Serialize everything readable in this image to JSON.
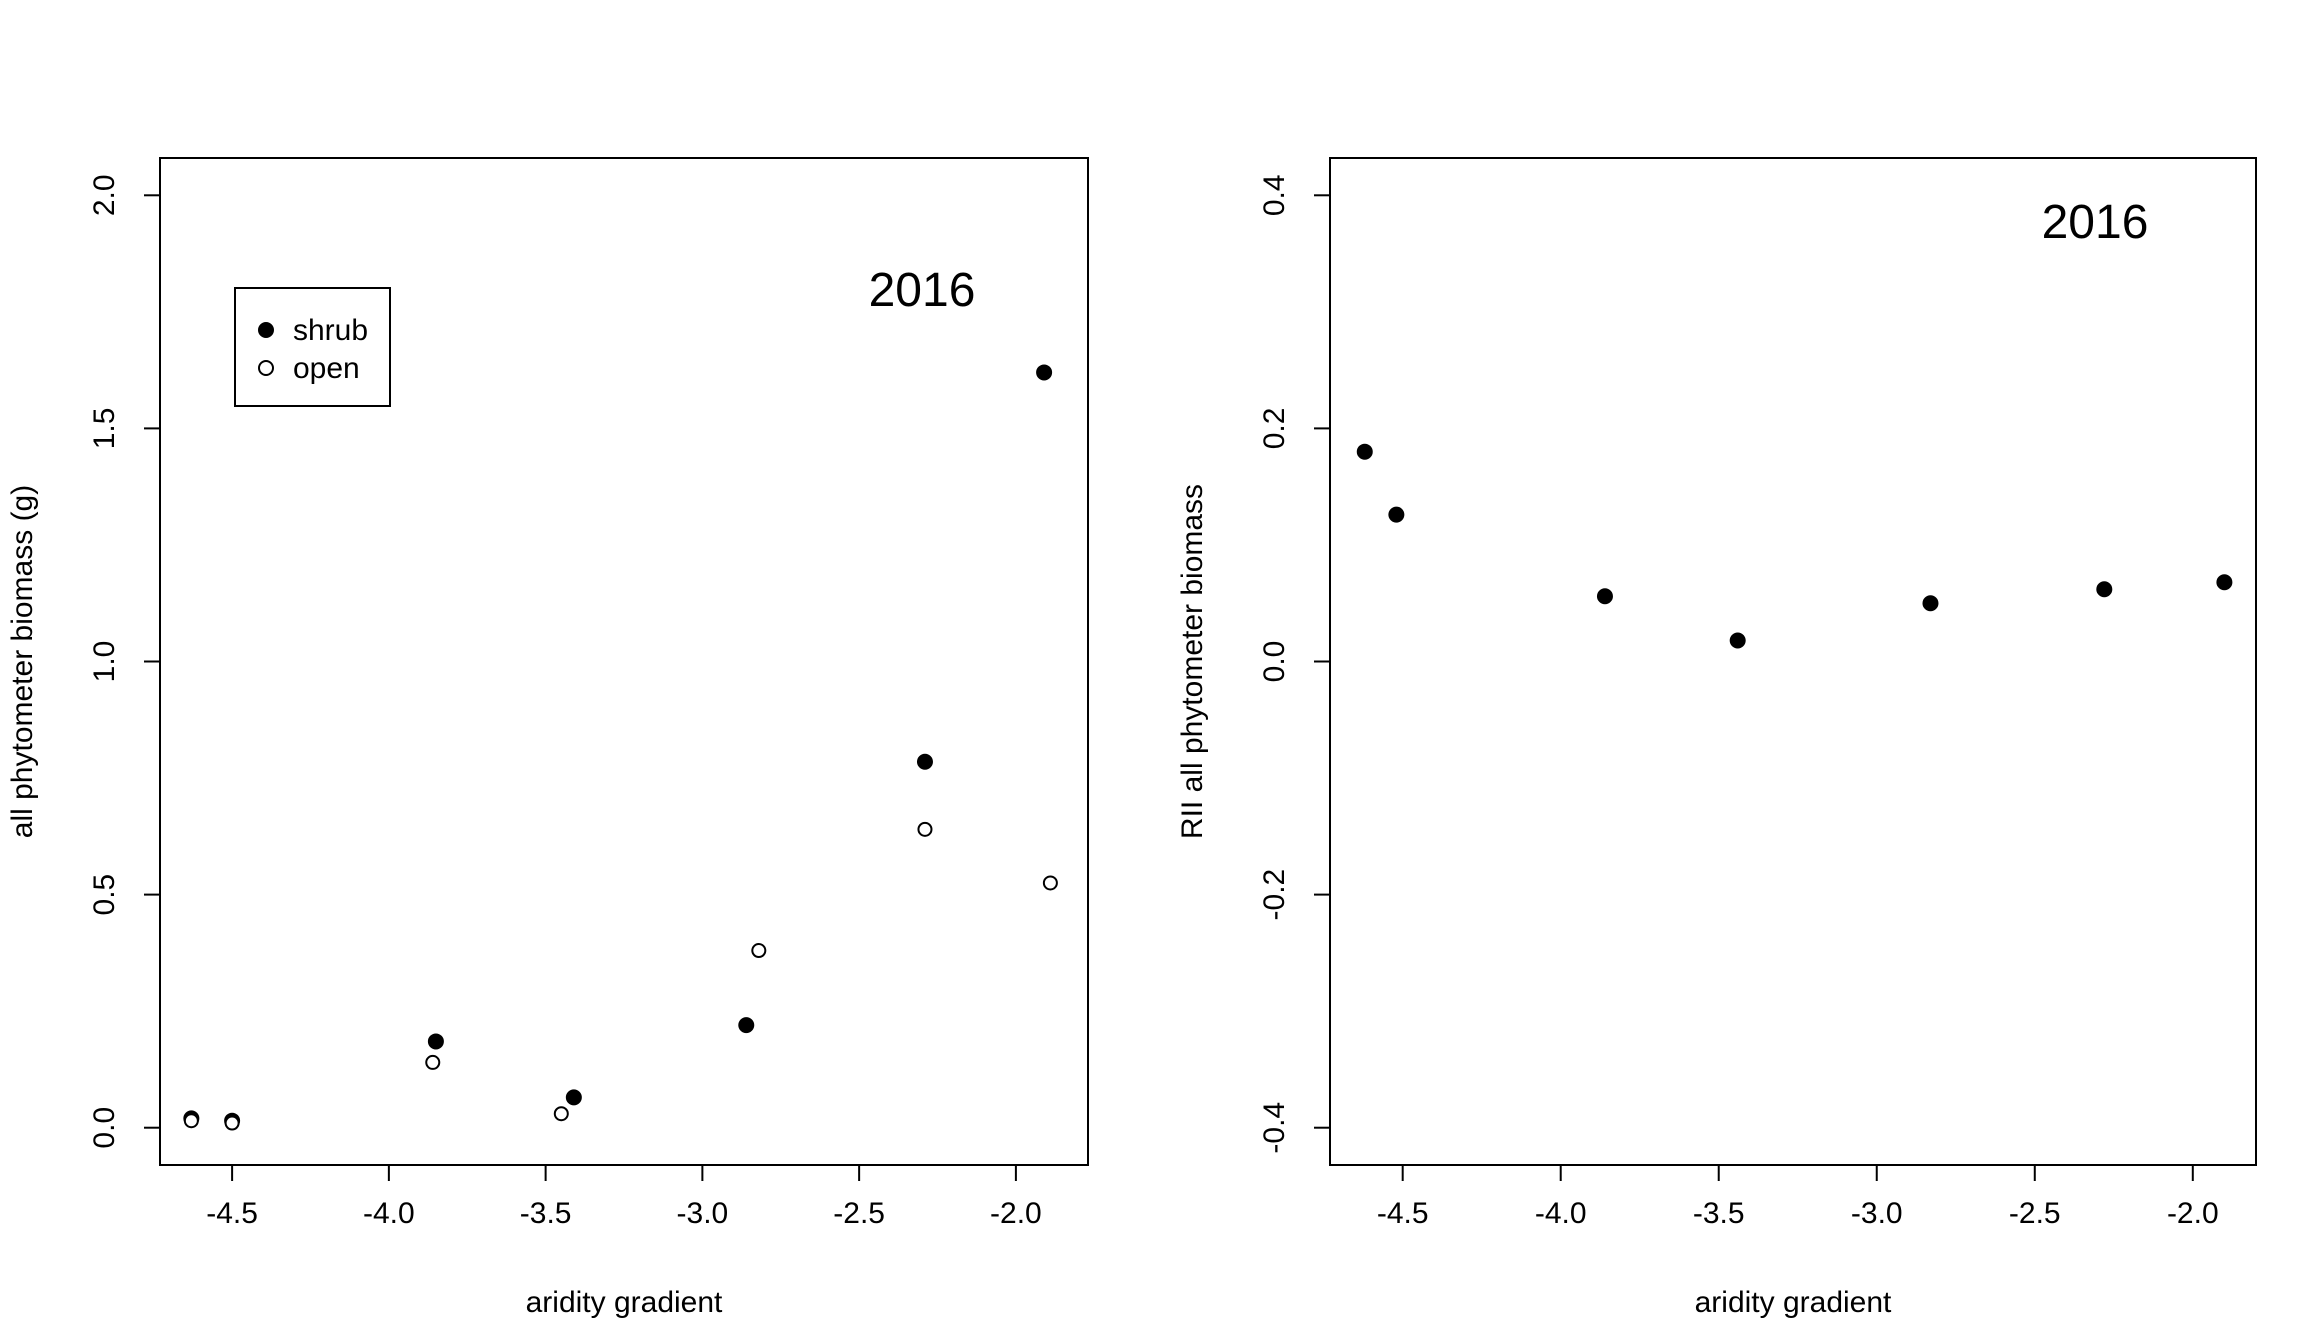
{
  "chart_data": [
    {
      "type": "scatter",
      "title": "",
      "annotation": "2016",
      "xlabel": "aridity gradient",
      "ylabel": "all phytometer biomass (g)",
      "xlim": [
        -4.73,
        -1.77
      ],
      "ylim": [
        -0.08,
        2.08
      ],
      "xticks": [
        -4.5,
        -4.0,
        -3.5,
        -3.0,
        -2.5,
        -2.0
      ],
      "xtick_labels": [
        "-4.5",
        "-4.0",
        "-3.5",
        "-3.0",
        "-2.5",
        "-2.0"
      ],
      "yticks": [
        0.0,
        0.5,
        1.0,
        1.5,
        2.0
      ],
      "ytick_labels": [
        "0.0",
        "0.5",
        "1.0",
        "1.5",
        "2.0"
      ],
      "legend": {
        "position": "top-left",
        "entries": [
          "shrub",
          "open"
        ]
      },
      "series": [
        {
          "name": "shrub",
          "marker": "filled-circle",
          "points": [
            {
              "x": -4.63,
              "y": 0.02
            },
            {
              "x": -4.5,
              "y": 0.015
            },
            {
              "x": -3.85,
              "y": 0.185
            },
            {
              "x": -3.41,
              "y": 0.065
            },
            {
              "x": -2.86,
              "y": 0.22
            },
            {
              "x": -2.29,
              "y": 0.785
            },
            {
              "x": -1.91,
              "y": 1.62
            }
          ]
        },
        {
          "name": "open",
          "marker": "open-circle",
          "points": [
            {
              "x": -4.63,
              "y": 0.015
            },
            {
              "x": -4.5,
              "y": 0.01
            },
            {
              "x": -3.86,
              "y": 0.14
            },
            {
              "x": -3.45,
              "y": 0.03
            },
            {
              "x": -2.82,
              "y": 0.38
            },
            {
              "x": -2.29,
              "y": 0.64
            },
            {
              "x": -1.89,
              "y": 0.525
            }
          ]
        }
      ]
    },
    {
      "type": "scatter",
      "title": "",
      "annotation": "2016",
      "xlabel": "aridity gradient",
      "ylabel": "RII all phytometer biomass",
      "xlim": [
        -4.73,
        -1.8
      ],
      "ylim": [
        -0.432,
        0.432
      ],
      "xticks": [
        -4.5,
        -4.0,
        -3.5,
        -3.0,
        -2.5,
        -2.0
      ],
      "xtick_labels": [
        "-4.5",
        "-4.0",
        "-3.5",
        "-3.0",
        "-2.5",
        "-2.0"
      ],
      "yticks": [
        -0.4,
        -0.2,
        0.0,
        0.2,
        0.4
      ],
      "ytick_labels": [
        "-0.4",
        "-0.2",
        "0.0",
        "0.2",
        "0.4"
      ],
      "series": [
        {
          "marker": "filled-circle",
          "points": [
            {
              "x": -4.62,
              "y": 0.18
            },
            {
              "x": -4.52,
              "y": 0.126
            },
            {
              "x": -3.86,
              "y": 0.056
            },
            {
              "x": -3.44,
              "y": 0.018
            },
            {
              "x": -2.83,
              "y": 0.05
            },
            {
              "x": -2.28,
              "y": 0.062
            },
            {
              "x": -1.9,
              "y": 0.068
            }
          ]
        }
      ]
    }
  ]
}
